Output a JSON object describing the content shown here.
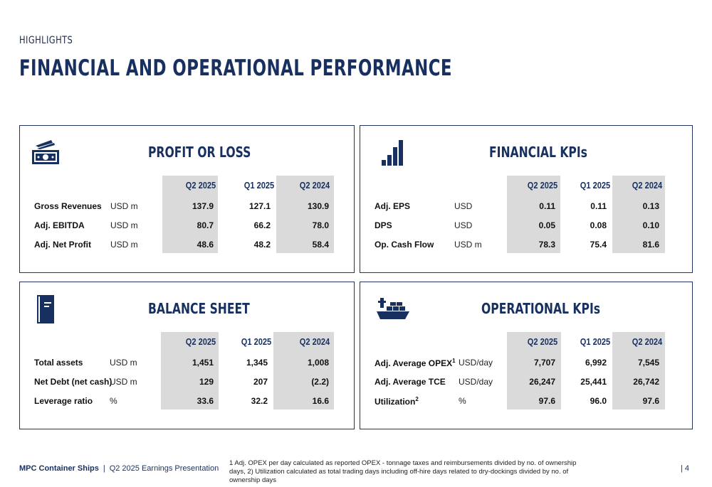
{
  "header": {
    "eyebrow": "HIGHLIGHTS",
    "title": "FINANCIAL AND OPERATIONAL PERFORMANCE"
  },
  "columns": [
    "Q2 2025",
    "Q1 2025",
    "Q2 2024"
  ],
  "profit_or_loss": {
    "title": "PROFIT OR LOSS",
    "icon": "money-icon",
    "rows": [
      {
        "label": "Gross Revenues",
        "unit": "USD m",
        "values": [
          "137.9",
          "127.1",
          "130.9"
        ]
      },
      {
        "label": "Adj. EBITDA",
        "unit": "USD m",
        "values": [
          "80.7",
          "66.2",
          "78.0"
        ]
      },
      {
        "label": "Adj. Net Profit",
        "unit": "USD m",
        "values": [
          "48.6",
          "48.2",
          "58.4"
        ]
      }
    ]
  },
  "financial_kpis": {
    "title": "FINANCIAL KPIs",
    "icon": "bar-chart-icon",
    "rows": [
      {
        "label": "Adj. EPS",
        "unit": "USD",
        "values": [
          "0.11",
          "0.11",
          "0.13"
        ]
      },
      {
        "label": "DPS",
        "unit": "USD",
        "values": [
          "0.05",
          "0.08",
          "0.10"
        ]
      },
      {
        "label": "Op. Cash Flow",
        "unit": "USD m",
        "values": [
          "78.3",
          "75.4",
          "81.6"
        ]
      }
    ]
  },
  "balance_sheet": {
    "title": "BALANCE SHEET",
    "icon": "ledger-book-icon",
    "rows": [
      {
        "label": "Total assets",
        "unit": "USD m",
        "values": [
          "1,451",
          "1,345",
          "1,008"
        ]
      },
      {
        "label": "Net Debt (net cash)",
        "unit": "USD m",
        "values": [
          "129",
          "207",
          "(2.2)"
        ]
      },
      {
        "label": "Leverage ratio",
        "unit": "%",
        "values": [
          "33.6",
          "32.2",
          "16.6"
        ]
      }
    ]
  },
  "operational_kpis": {
    "title": "OPERATIONAL KPIs",
    "icon": "container-ship-icon",
    "rows": [
      {
        "label": "Adj. Average OPEX",
        "sup": "1",
        "unit": "USD/day",
        "values": [
          "7,707",
          "6,992",
          "7,545"
        ]
      },
      {
        "label": "Adj. Average TCE",
        "sup": "",
        "unit": "USD/day",
        "values": [
          "26,247",
          "25,441",
          "26,742"
        ]
      },
      {
        "label": "Utilization",
        "sup": "2",
        "unit": "%",
        "values": [
          "97.6",
          "96.0",
          "97.6"
        ]
      }
    ]
  },
  "footer": {
    "brand": "MPC Container Ships",
    "separator": "|",
    "presentation": "Q2 2025 Earnings Presentation",
    "footnote": "1 Adj. OPEX per day calculated as reported OPEX - tonnage taxes and reimbursements divided by no. of ownership days, 2) Utilization calculated as total trading days including off-hire days related to dry-dockings divided by no. of ownership days",
    "page": "|  4"
  },
  "colors": {
    "navy": "#18305f",
    "shade": "#dadada",
    "border": "#1f3461"
  }
}
